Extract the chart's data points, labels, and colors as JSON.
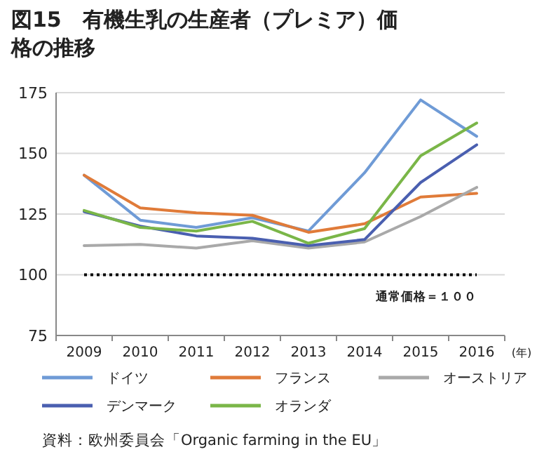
{
  "chart_data": {
    "type": "line",
    "title": "図15　有機生乳の生産者（プレミア）価格の推移",
    "xlabel": "(年)",
    "categories": [
      "2009",
      "2010",
      "2011",
      "2012",
      "2013",
      "2014",
      "2015",
      "2016"
    ],
    "series": [
      {
        "name": "ドイツ",
        "color": "#6f9bd6",
        "values": [
          141,
          122.5,
          119.5,
          123.5,
          118,
          142,
          172,
          157
        ]
      },
      {
        "name": "フランス",
        "color": "#e07b39",
        "values": [
          141,
          127.5,
          125.5,
          124.5,
          117.5,
          121,
          132,
          133.5
        ]
      },
      {
        "name": "オーストリア",
        "color": "#a9a9a9",
        "values": [
          112,
          112.5,
          111,
          114,
          111,
          113.5,
          124,
          136
        ]
      },
      {
        "name": "デンマーク",
        "color": "#4a5fb0",
        "values": [
          126,
          120,
          116,
          115,
          112,
          114.5,
          138,
          153.5
        ]
      },
      {
        "name": "オランダ",
        "color": "#7ab648",
        "values": [
          126.5,
          119.5,
          118,
          122,
          113,
          119,
          149,
          162.5
        ]
      }
    ],
    "ylim": [
      75,
      175
    ],
    "yticks": [
      75,
      100,
      125,
      150,
      175
    ],
    "grid": "y",
    "legend": "bottom",
    "marker": "none",
    "line_style": "solid",
    "ref_lines": [
      {
        "axis": "y",
        "value": 100,
        "label": "通常価格＝１００",
        "color": "#000000",
        "line_style": "dotted"
      }
    ],
    "annotations": [
      "資料：欧州委員会「Organic farming in the EU」"
    ]
  }
}
